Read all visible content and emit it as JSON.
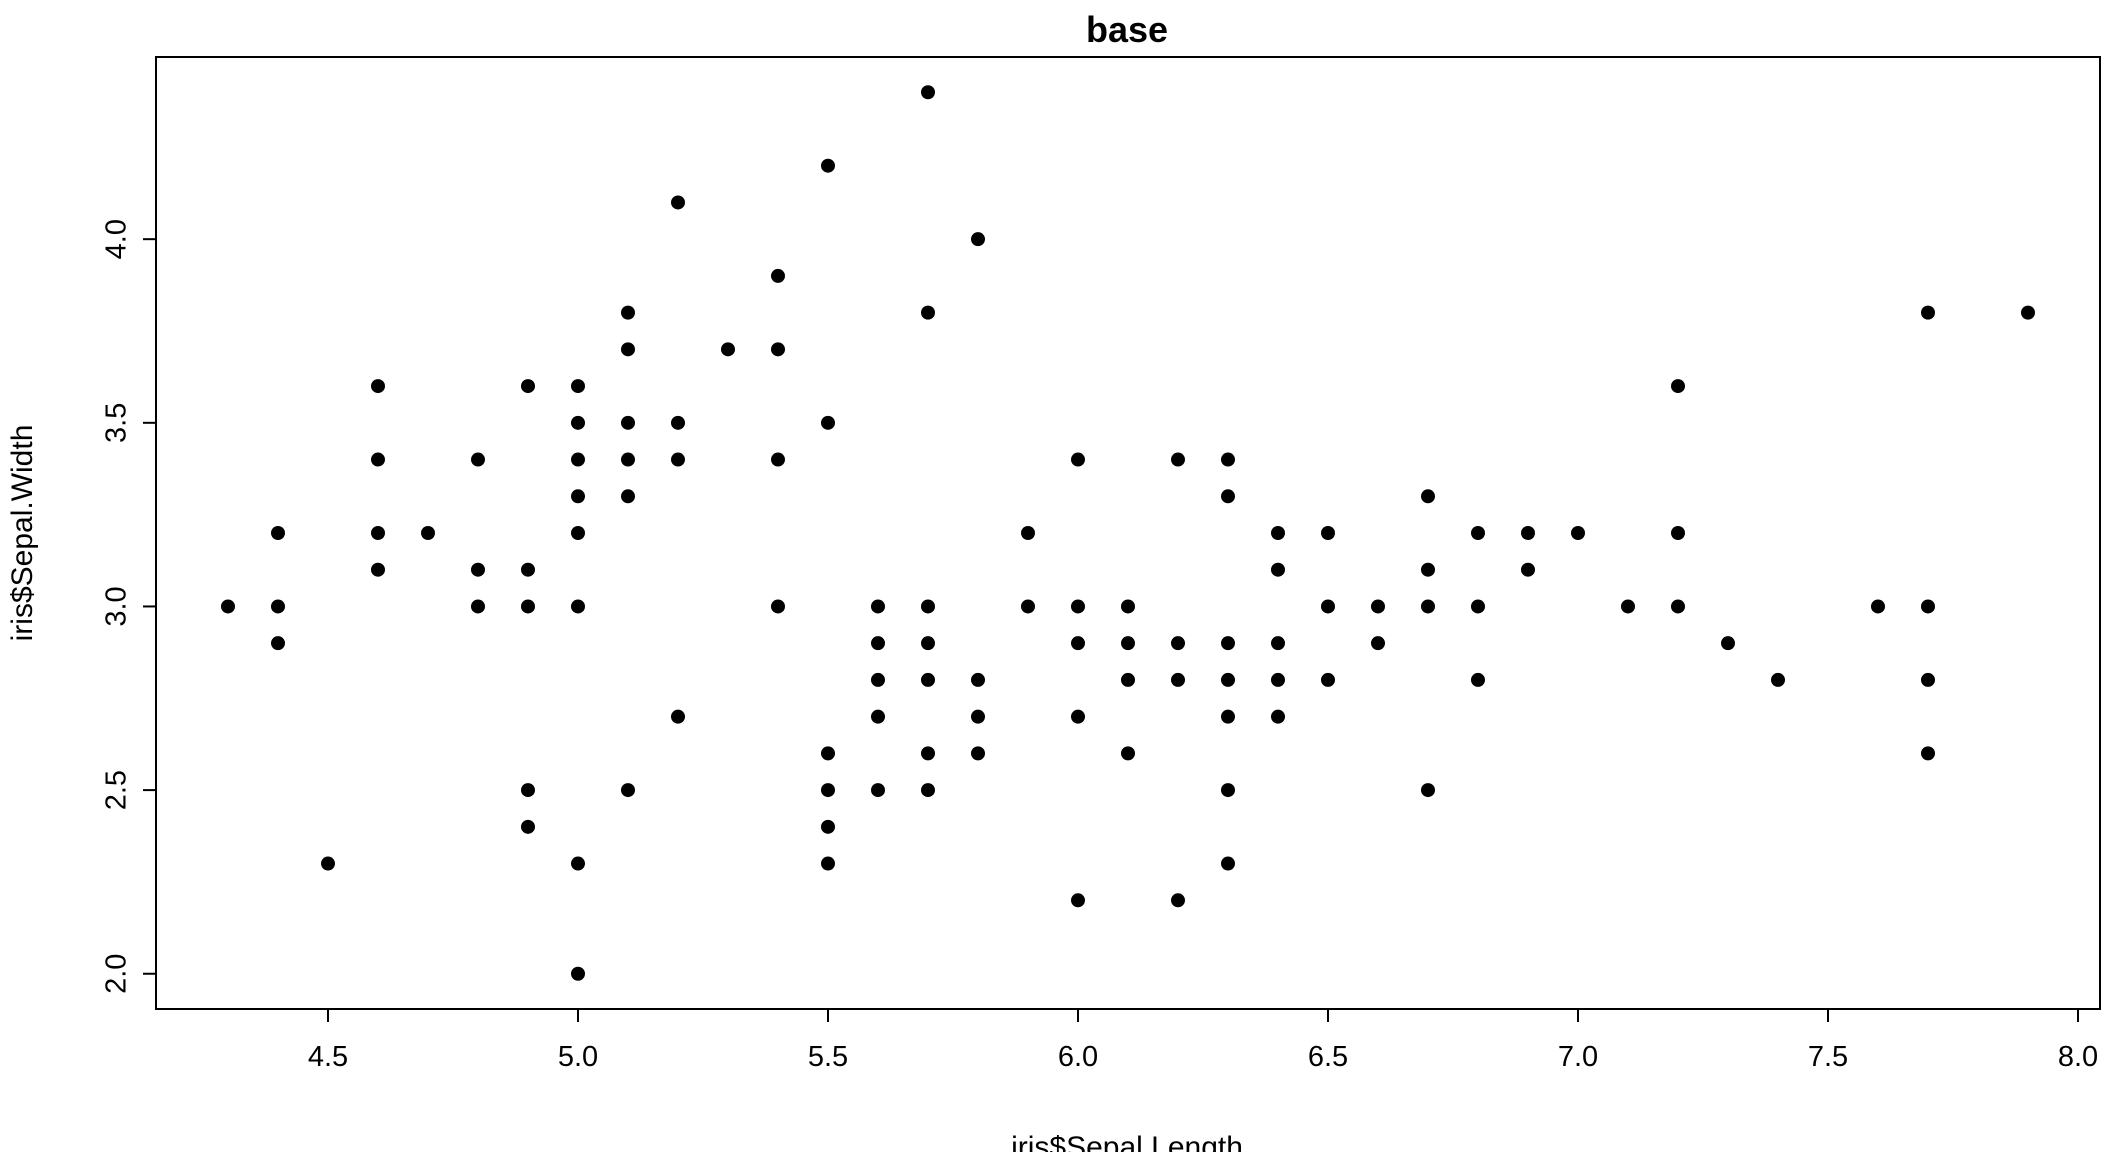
{
  "chart_data": {
    "type": "scatter",
    "title": "base",
    "xlabel": "iris$Sepal.Length",
    "ylabel": "iris$Sepal.Width",
    "xlim": [
      4.156,
      8.044
    ],
    "ylim": [
      1.904,
      4.496
    ],
    "xticks": [
      "4.5",
      "5.0",
      "5.5",
      "6.0",
      "6.5",
      "7.0",
      "7.5",
      "8.0"
    ],
    "yticks": [
      "2.0",
      "2.5",
      "3.0",
      "3.5",
      "4.0"
    ],
    "grid": false,
    "point_color": "#000000",
    "points": [
      [
        4.3,
        3.0
      ],
      [
        4.4,
        3.2
      ],
      [
        4.4,
        3.0
      ],
      [
        4.4,
        2.9
      ],
      [
        4.5,
        2.3
      ],
      [
        4.6,
        3.6
      ],
      [
        4.6,
        3.4
      ],
      [
        4.6,
        3.2
      ],
      [
        4.6,
        3.1
      ],
      [
        4.7,
        3.2
      ],
      [
        4.8,
        3.4
      ],
      [
        4.8,
        3.1
      ],
      [
        4.8,
        3.0
      ],
      [
        4.9,
        3.6
      ],
      [
        4.9,
        3.1
      ],
      [
        4.9,
        3.0
      ],
      [
        4.9,
        2.5
      ],
      [
        4.9,
        2.4
      ],
      [
        5.0,
        3.6
      ],
      [
        5.0,
        3.5
      ],
      [
        5.0,
        3.4
      ],
      [
        5.0,
        3.3
      ],
      [
        5.0,
        3.2
      ],
      [
        5.0,
        3.0
      ],
      [
        5.0,
        2.3
      ],
      [
        5.0,
        2.0
      ],
      [
        5.1,
        3.8
      ],
      [
        5.1,
        3.7
      ],
      [
        5.1,
        3.5
      ],
      [
        5.1,
        3.4
      ],
      [
        5.1,
        3.3
      ],
      [
        5.1,
        2.5
      ],
      [
        5.2,
        4.1
      ],
      [
        5.2,
        3.5
      ],
      [
        5.2,
        3.4
      ],
      [
        5.2,
        2.7
      ],
      [
        5.3,
        3.7
      ],
      [
        5.4,
        3.9
      ],
      [
        5.4,
        3.7
      ],
      [
        5.4,
        3.4
      ],
      [
        5.4,
        3.0
      ],
      [
        5.5,
        4.2
      ],
      [
        5.5,
        3.5
      ],
      [
        5.5,
        2.6
      ],
      [
        5.5,
        2.5
      ],
      [
        5.5,
        2.4
      ],
      [
        5.5,
        2.3
      ],
      [
        5.6,
        3.0
      ],
      [
        5.6,
        2.9
      ],
      [
        5.6,
        2.8
      ],
      [
        5.6,
        2.7
      ],
      [
        5.6,
        2.5
      ],
      [
        5.7,
        4.4
      ],
      [
        5.7,
        3.8
      ],
      [
        5.7,
        3.0
      ],
      [
        5.7,
        2.9
      ],
      [
        5.7,
        2.8
      ],
      [
        5.7,
        2.6
      ],
      [
        5.7,
        2.5
      ],
      [
        5.8,
        4.0
      ],
      [
        5.8,
        2.8
      ],
      [
        5.8,
        2.7
      ],
      [
        5.8,
        2.6
      ],
      [
        5.9,
        3.2
      ],
      [
        5.9,
        3.0
      ],
      [
        6.0,
        3.4
      ],
      [
        6.0,
        3.0
      ],
      [
        6.0,
        2.9
      ],
      [
        6.0,
        2.7
      ],
      [
        6.0,
        2.2
      ],
      [
        6.1,
        3.0
      ],
      [
        6.1,
        2.9
      ],
      [
        6.1,
        2.8
      ],
      [
        6.1,
        2.6
      ],
      [
        6.2,
        3.4
      ],
      [
        6.2,
        2.9
      ],
      [
        6.2,
        2.8
      ],
      [
        6.2,
        2.2
      ],
      [
        6.3,
        3.4
      ],
      [
        6.3,
        3.3
      ],
      [
        6.3,
        2.9
      ],
      [
        6.3,
        2.8
      ],
      [
        6.3,
        2.7
      ],
      [
        6.3,
        2.5
      ],
      [
        6.3,
        2.3
      ],
      [
        6.4,
        3.2
      ],
      [
        6.4,
        3.1
      ],
      [
        6.4,
        2.9
      ],
      [
        6.4,
        2.8
      ],
      [
        6.4,
        2.7
      ],
      [
        6.5,
        3.2
      ],
      [
        6.5,
        3.0
      ],
      [
        6.5,
        2.8
      ],
      [
        6.6,
        3.0
      ],
      [
        6.6,
        2.9
      ],
      [
        6.7,
        3.3
      ],
      [
        6.7,
        3.1
      ],
      [
        6.7,
        3.0
      ],
      [
        6.7,
        2.5
      ],
      [
        6.8,
        3.2
      ],
      [
        6.8,
        3.0
      ],
      [
        6.8,
        2.8
      ],
      [
        6.9,
        3.2
      ],
      [
        6.9,
        3.1
      ],
      [
        7.0,
        3.2
      ],
      [
        7.1,
        3.0
      ],
      [
        7.2,
        3.6
      ],
      [
        7.2,
        3.2
      ],
      [
        7.2,
        3.0
      ],
      [
        7.3,
        2.9
      ],
      [
        7.4,
        2.8
      ],
      [
        7.6,
        3.0
      ],
      [
        7.7,
        3.8
      ],
      [
        7.7,
        3.0
      ],
      [
        7.7,
        2.8
      ],
      [
        7.7,
        2.6
      ],
      [
        7.9,
        3.8
      ]
    ]
  }
}
